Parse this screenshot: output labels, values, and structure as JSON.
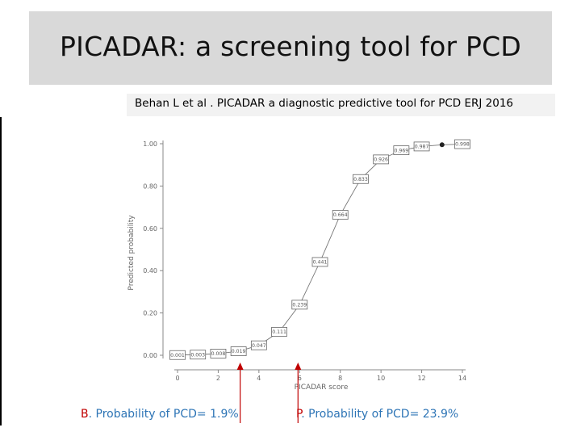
{
  "slide": {
    "title": "PICADAR: a screening tool for PCD",
    "citation": "Behan L et al . PICADAR  a diagnostic predictive tool for PCD  ERJ  2016"
  },
  "annotations": [
    {
      "letter": "B",
      "text": ". Probability of PCD= 1.9%",
      "score": 3
    },
    {
      "letter": "P",
      "text": ". Probability of PCD= 23.9%",
      "score": 6
    }
  ],
  "colors": {
    "annotation_text": "#2e75b6",
    "annotation_arrow": "#c00000",
    "title_band": "#d9d9d9"
  },
  "chart_data": {
    "type": "line",
    "xlabel": "PICADAR score",
    "ylabel": "Predicted probability",
    "xlim": [
      0,
      14
    ],
    "ylim": [
      0,
      1
    ],
    "xticks": [
      "0",
      "2",
      "4",
      "6",
      "8",
      "10",
      "12",
      "14"
    ],
    "yticks": [
      "0.00",
      "0.20",
      "0.40",
      "0.60",
      "0.80",
      "1.00"
    ],
    "grid": false,
    "series": [
      {
        "x": [
          0,
          1,
          2,
          3,
          4,
          5,
          6,
          7,
          8,
          9,
          10,
          11,
          12,
          13,
          14
        ],
        "values": [
          0.001,
          0.003,
          0.008,
          0.019,
          0.047,
          0.111,
          0.239,
          0.441,
          0.664,
          0.833,
          0.926,
          0.969,
          0.987,
          0.995,
          0.998
        ],
        "labels": [
          "0.001",
          "0.003",
          "0.008",
          "0.019",
          "0.047",
          "0.111",
          "0.239",
          "0.441",
          "0.664",
          "0.833",
          "0.926",
          "0.969",
          "0.987",
          "",
          "0.998"
        ]
      }
    ]
  }
}
